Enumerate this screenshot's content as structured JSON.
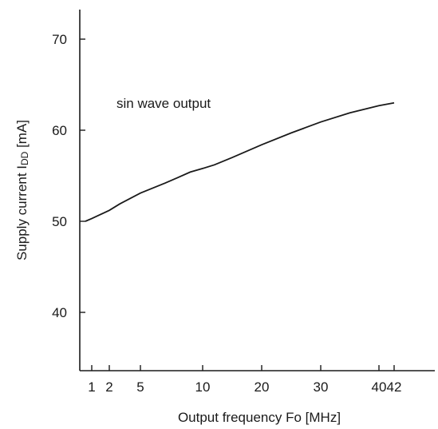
{
  "chart_data": {
    "type": "line",
    "title": "",
    "xlabel": "Output frequency Fo [MHz]",
    "ylabel_main": "Supply current I",
    "ylabel_sub": "DD",
    "ylabel_unit": " [mA]",
    "ylabel": "Supply current IDD [mA]",
    "annotation": "sin wave output",
    "x_ticks": [
      {
        "label": "1",
        "value": 1
      },
      {
        "label": "2",
        "value": 2
      },
      {
        "label": "5",
        "value": 5
      },
      {
        "label": "10",
        "value": 10
      },
      {
        "label": "20",
        "value": 20
      },
      {
        "label": "30",
        "value": 30
      },
      {
        "label": "40",
        "value": 40
      },
      {
        "label": "42",
        "value": 42
      }
    ],
    "y_ticks": [
      {
        "label": "40",
        "value": 40
      },
      {
        "label": "50",
        "value": 50
      },
      {
        "label": "60",
        "value": 60
      },
      {
        "label": "70",
        "value": 70
      }
    ],
    "ylim": [
      33.5,
      74
    ],
    "grid": false,
    "series": [
      {
        "x": [
          0.5,
          1,
          2,
          3,
          5,
          7,
          8,
          9,
          10,
          12,
          15,
          20,
          25,
          30,
          35,
          40,
          42
        ],
        "y": [
          50.0,
          50.3,
          51.2,
          51.9,
          53.1,
          54.2,
          54.8,
          55.4,
          55.8,
          56.2,
          57.0,
          58.4,
          59.7,
          60.9,
          61.9,
          62.7,
          63.0
        ]
      }
    ],
    "line_color": "#1a1a1a"
  }
}
